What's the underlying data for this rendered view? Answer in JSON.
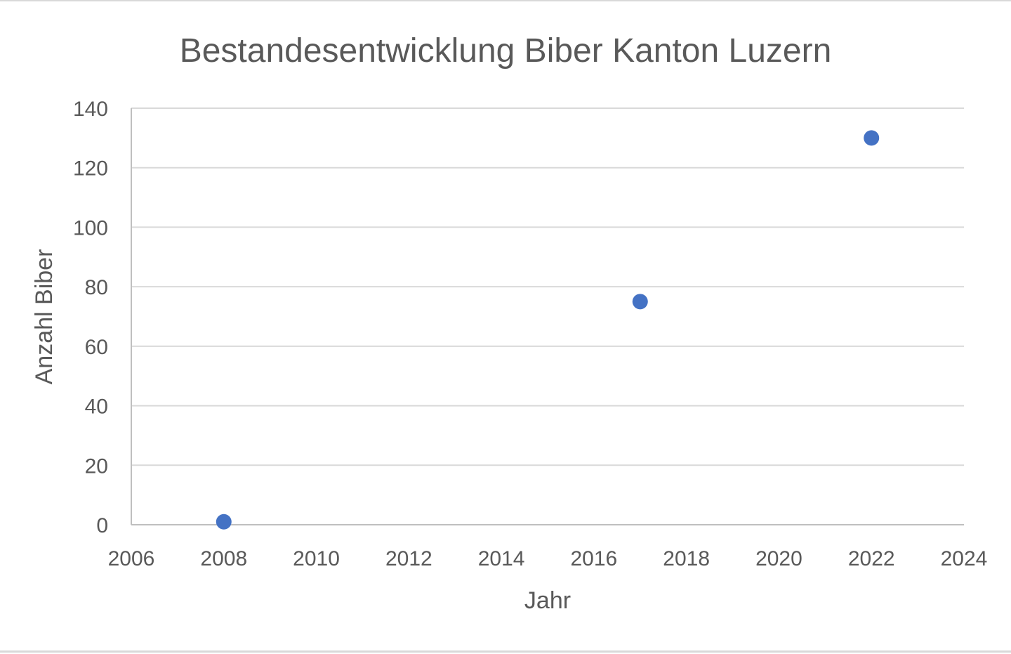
{
  "chart_data": {
    "type": "scatter",
    "title": "Bestandesentwicklung Biber Kanton Luzern",
    "xlabel": "Jahr",
    "ylabel": "Anzahl Biber",
    "xlim": [
      2006,
      2024
    ],
    "ylim": [
      0,
      140
    ],
    "x_ticks": [
      2006,
      2008,
      2010,
      2012,
      2014,
      2016,
      2018,
      2020,
      2022,
      2024
    ],
    "y_ticks": [
      0,
      20,
      40,
      60,
      80,
      100,
      120,
      140
    ],
    "grid": true,
    "legend": "none",
    "series": [
      {
        "color": "#4472c4",
        "x": [
          2008,
          2017,
          2022
        ],
        "y": [
          1,
          75,
          130
        ]
      }
    ]
  }
}
